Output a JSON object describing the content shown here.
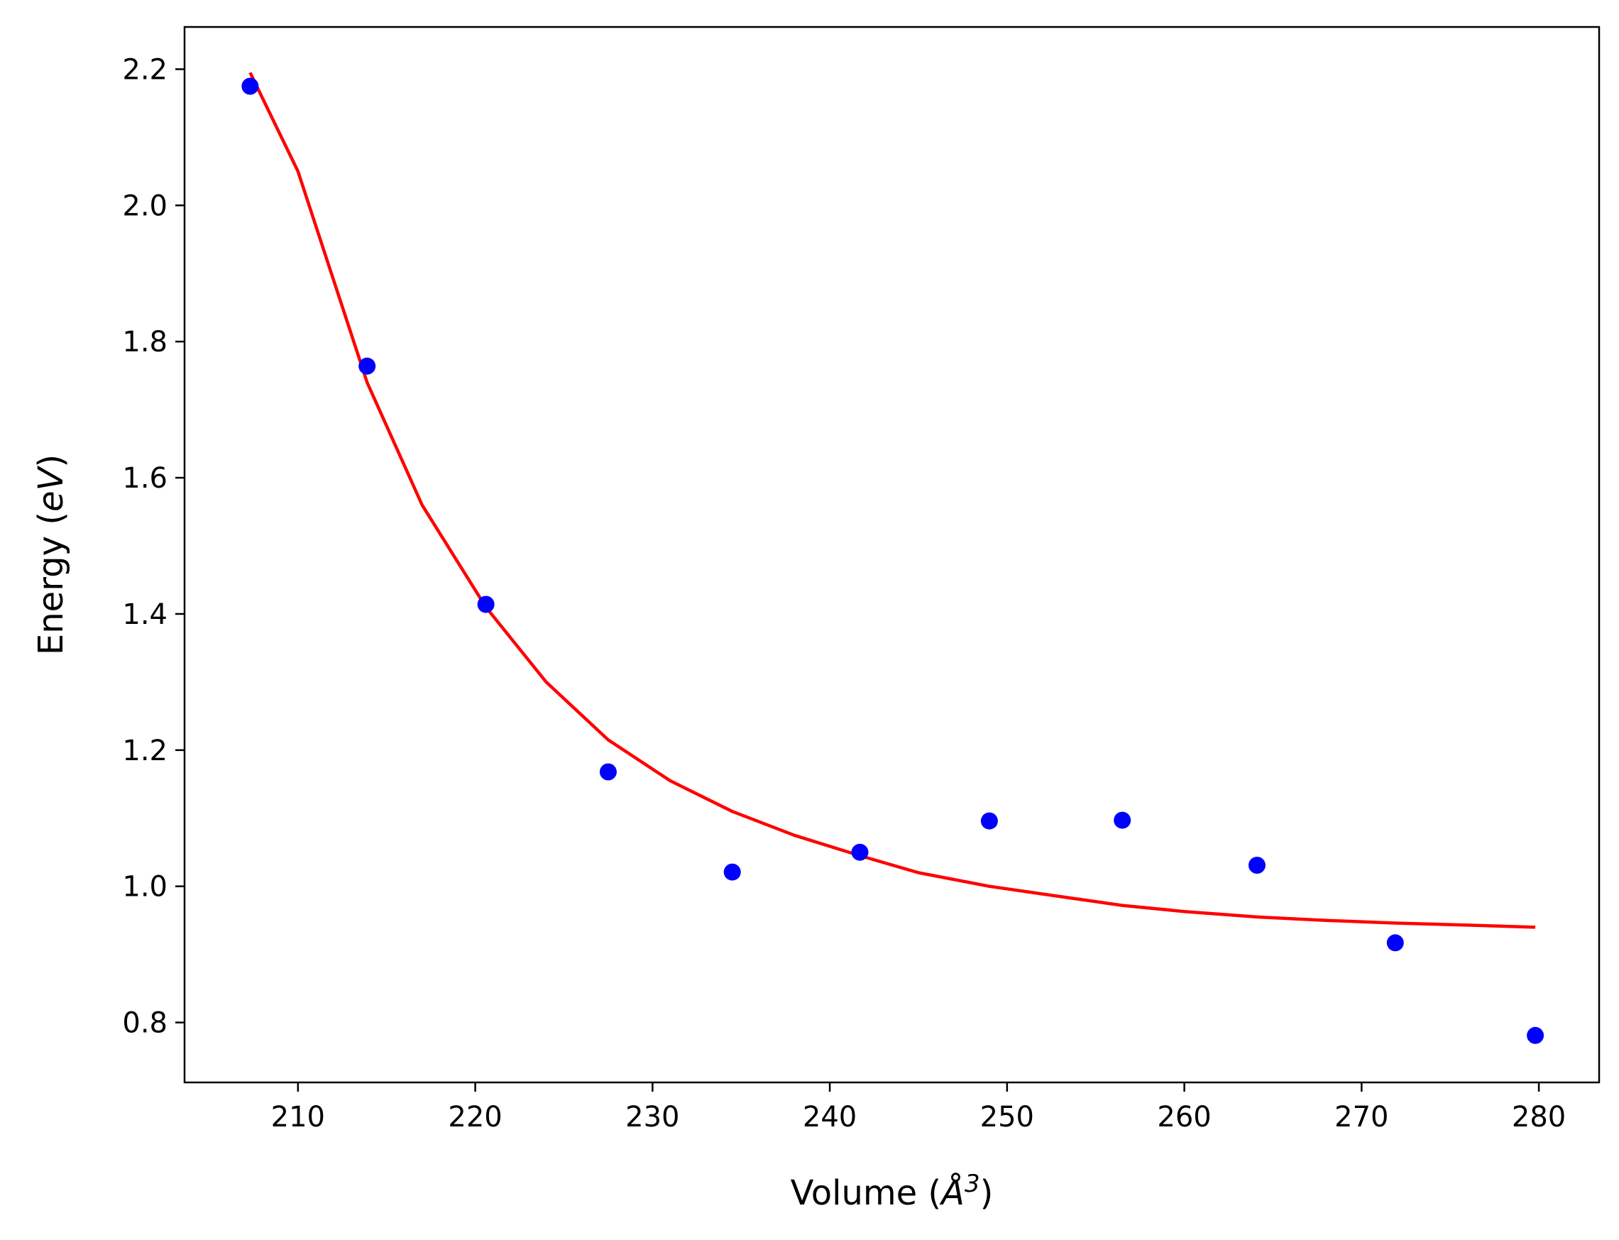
{
  "chart_data": {
    "type": "scatter",
    "xlabel": {
      "prefix": "Volume (",
      "symbol": "Å",
      "superscript": "3",
      "suffix": ")"
    },
    "ylabel": {
      "prefix": "Energy (",
      "italic": "eV",
      "suffix": ")"
    },
    "xlim": [
      203.6,
      283.4
    ],
    "ylim": [
      0.712,
      2.262
    ],
    "x_ticks": [
      210,
      220,
      230,
      240,
      250,
      260,
      270,
      280
    ],
    "y_ticks": [
      0.8,
      1.0,
      1.2,
      1.4,
      1.6,
      1.8,
      2.0,
      2.2
    ],
    "x_tick_labels": [
      "210",
      "220",
      "230",
      "240",
      "250",
      "260",
      "270",
      "280"
    ],
    "y_tick_labels": [
      "0.8",
      "1.0",
      "1.2",
      "1.4",
      "1.6",
      "1.8",
      "2.0",
      "2.2"
    ],
    "grid": false,
    "series": [
      {
        "type": "scatter",
        "color": "#0000ff",
        "x": [
          207.3,
          213.9,
          220.6,
          227.5,
          234.5,
          241.7,
          249.0,
          256.5,
          264.1,
          271.9,
          279.8
        ],
        "y": [
          2.175,
          1.764,
          1.414,
          1.168,
          1.021,
          1.05,
          1.096,
          1.097,
          1.031,
          0.917,
          0.781
        ]
      },
      {
        "type": "line",
        "color": "#ff0000",
        "x": [
          207.3,
          210,
          213.9,
          217,
          220.6,
          224,
          227.5,
          231,
          234.5,
          238,
          241.7,
          245,
          249.0,
          253,
          256.5,
          260,
          264.1,
          268,
          271.9,
          276,
          279.8
        ],
        "y": [
          2.195,
          2.05,
          1.74,
          1.56,
          1.41,
          1.3,
          1.215,
          1.155,
          1.11,
          1.075,
          1.045,
          1.02,
          1.0,
          0.985,
          0.972,
          0.963,
          0.955,
          0.95,
          0.946,
          0.943,
          0.94
        ]
      }
    ]
  }
}
